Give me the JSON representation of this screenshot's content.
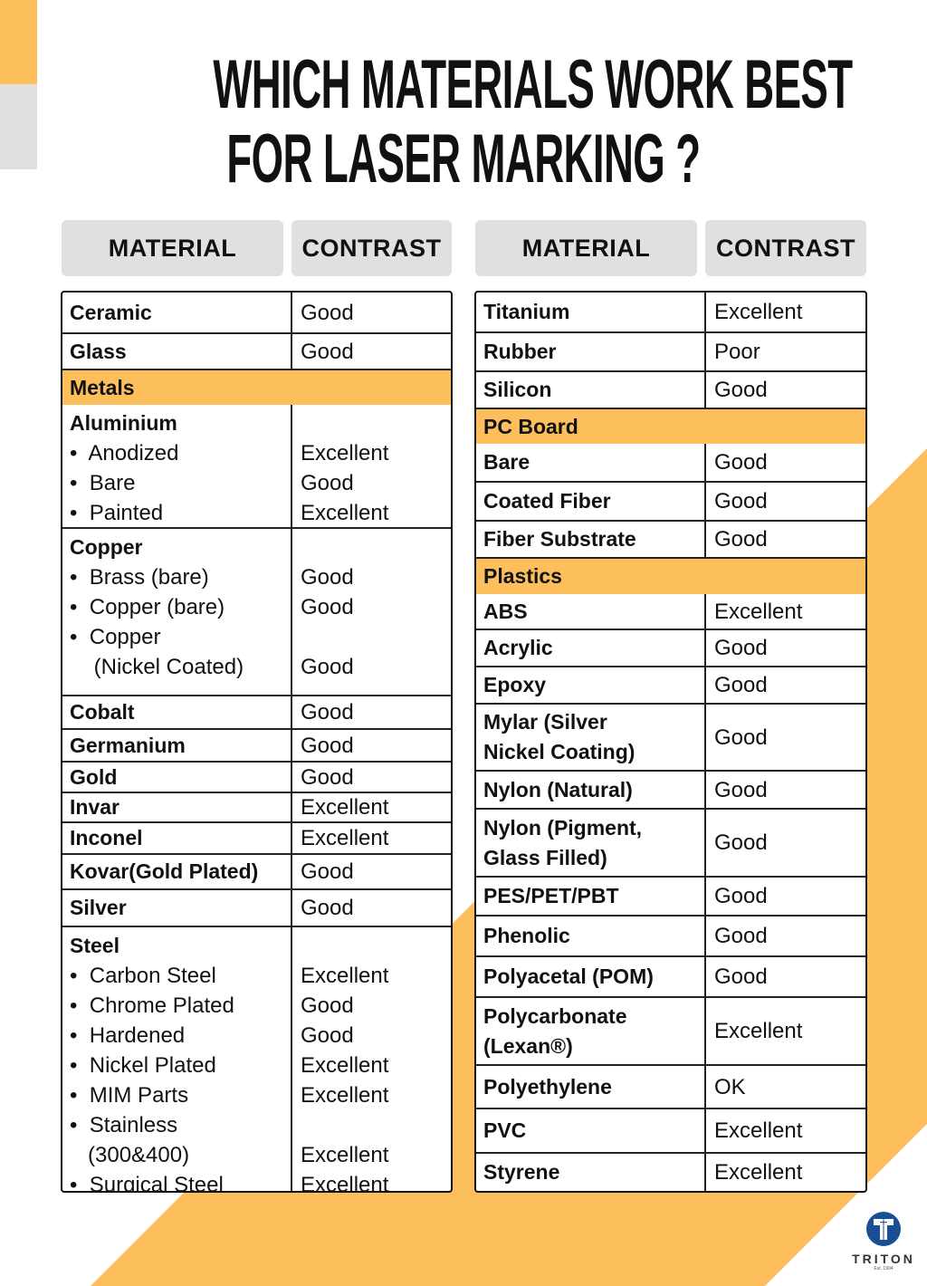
{
  "title": {
    "line1": "WHICH MATERIALS WORK BEST",
    "line2": "FOR LASER MARKING ?"
  },
  "colors": {
    "accent": "#FDBE5C",
    "header_bg": "#E0E0E0",
    "logo_blue": "#1B4F93"
  },
  "headers": {
    "material": "MATERIAL",
    "contrast": "CONTRAST"
  },
  "left_table": [
    {
      "material": "Ceramic",
      "contrast": "Good"
    },
    {
      "material": "Glass",
      "contrast": "Good"
    },
    {
      "category": "Metals"
    },
    {
      "group": "Aluminium",
      "items": [
        {
          "name": "•  Anodized",
          "contrast": "Excellent"
        },
        {
          "name": "•  Bare",
          "contrast": "Good"
        },
        {
          "name": "•  Painted",
          "contrast": "Excellent"
        }
      ]
    },
    {
      "group": "Copper",
      "items": [
        {
          "name": "•  Brass (bare)",
          "contrast": "Good"
        },
        {
          "name": "•  Copper (bare)",
          "contrast": "Good"
        },
        {
          "name": "•  Copper",
          "contrast": ""
        },
        {
          "name": "    (Nickel Coated)",
          "contrast": "Good"
        }
      ]
    },
    {
      "material": "Cobalt",
      "contrast": "Good"
    },
    {
      "material": "Germanium",
      "contrast": "Good"
    },
    {
      "material": "Gold",
      "contrast": "Good"
    },
    {
      "material": "Invar",
      "contrast": "Excellent"
    },
    {
      "material": "Inconel",
      "contrast": "Excellent"
    },
    {
      "material": "Kovar(Gold Plated)",
      "contrast": "Good"
    },
    {
      "material": "Silver",
      "contrast": "Good"
    },
    {
      "group": "Steel",
      "items": [
        {
          "name": "•  Carbon Steel",
          "contrast": "Excellent"
        },
        {
          "name": "•  Chrome Plated",
          "contrast": "Good"
        },
        {
          "name": "•  Hardened",
          "contrast": "Good"
        },
        {
          "name": "•  Nickel Plated",
          "contrast": "Excellent"
        },
        {
          "name": "•  MIM Parts",
          "contrast": "Excellent"
        },
        {
          "name": "•  Stainless",
          "contrast": ""
        },
        {
          "name": "   (300&400)",
          "contrast": "Excellent"
        },
        {
          "name": "•  Surgical Steel",
          "contrast": "Excellent"
        }
      ]
    }
  ],
  "right_table": [
    {
      "material": "Titanium",
      "contrast": "Excellent"
    },
    {
      "material": "Rubber",
      "contrast": "Poor"
    },
    {
      "material": "Silicon",
      "contrast": "Good"
    },
    {
      "category": "PC Board"
    },
    {
      "material": "Bare",
      "contrast": "Good"
    },
    {
      "material": "Coated Fiber",
      "contrast": "Good"
    },
    {
      "material": "Fiber Substrate",
      "contrast": "Good"
    },
    {
      "category": "Plastics"
    },
    {
      "material": "ABS",
      "contrast": "Excellent"
    },
    {
      "material": "Acrylic",
      "contrast": "Good"
    },
    {
      "material": "Epoxy",
      "contrast": "Good"
    },
    {
      "material": "Mylar (Silver\nNickel Coating)",
      "contrast": "Good"
    },
    {
      "material": "Nylon (Natural)",
      "contrast": "Good"
    },
    {
      "material": "Nylon (Pigment,\nGlass Filled)",
      "contrast": "Good"
    },
    {
      "material": "PES/PET/PBT",
      "contrast": "Good"
    },
    {
      "material": "Phenolic",
      "contrast": "Good"
    },
    {
      "material": "Polyacetal (POM)",
      "contrast": "Good"
    },
    {
      "material": "Polycarbonate\n(Lexan®)",
      "contrast": "Excellent"
    },
    {
      "material": "Polyethylene",
      "contrast": "OK"
    },
    {
      "material": "PVC",
      "contrast": "Excellent"
    },
    {
      "material": "Styrene",
      "contrast": "Excellent"
    }
  ],
  "logo": {
    "name": "TRITON",
    "tagline": "Est. 1904"
  }
}
